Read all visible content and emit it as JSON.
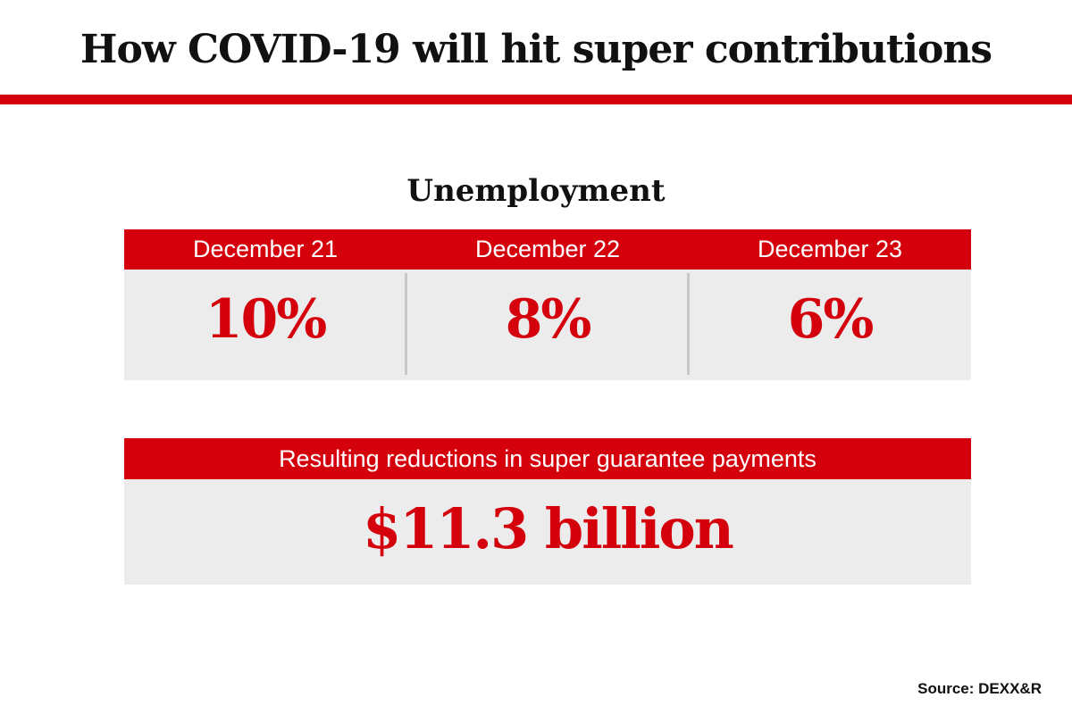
{
  "colors": {
    "accent": "#d4000c",
    "panel": "#ececec",
    "text": "#111111"
  },
  "title": "How COVID-19 will hit super contributions",
  "chart_data": {
    "type": "table",
    "subtitle": "Unemployment",
    "columns": [
      "December 21",
      "December 22",
      "December 23"
    ],
    "values": [
      "10%",
      "8%",
      "6%"
    ],
    "numeric_values": [
      10,
      8,
      6
    ],
    "unit": "%"
  },
  "result": {
    "label": "Resulting reductions in super guarantee payments",
    "value": "$11.3 billion"
  },
  "source": "Source: DEXX&R"
}
